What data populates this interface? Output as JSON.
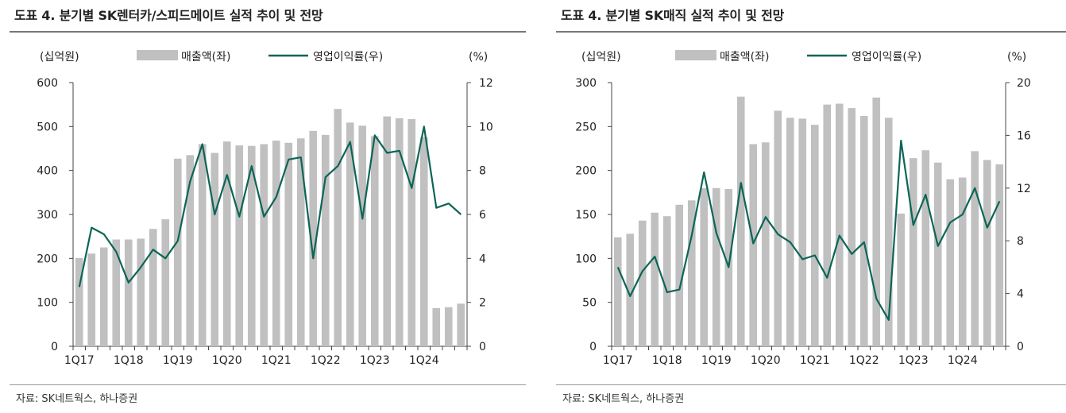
{
  "colors": {
    "bar": "#c0c0c0",
    "line": "#0c6556",
    "axis": "#444444",
    "rule": "#777777"
  },
  "chart_data": [
    {
      "type": "bar",
      "title": "도표 4. 분기별 SK렌터카/스피드메이트 실적 추이 및 전망",
      "source": "자료: SK네트웍스, 하나증권",
      "left_unit": "(십억원)",
      "right_unit": "(%)",
      "legend_bar": "매출액(좌)",
      "legend_line": "영업이익률(우)",
      "left_ylim": [
        0,
        600
      ],
      "left_ticks": [
        "0",
        "100",
        "200",
        "300",
        "400",
        "500",
        "600"
      ],
      "right_ylim": [
        0,
        12
      ],
      "right_ticks": [
        "0",
        "2",
        "4",
        "6",
        "8",
        "10",
        "12"
      ],
      "x_ticks": [
        "1Q17",
        "1Q18",
        "1Q19",
        "1Q20",
        "1Q21",
        "1Q22",
        "1Q23",
        "1Q24"
      ],
      "quarters": [
        "1Q17",
        "2Q17",
        "3Q17",
        "4Q17",
        "1Q18",
        "2Q18",
        "3Q18",
        "4Q18",
        "1Q19",
        "2Q19",
        "3Q19",
        "4Q19",
        "1Q20",
        "2Q20",
        "3Q20",
        "4Q20",
        "1Q21",
        "2Q21",
        "3Q21",
        "4Q21",
        "1Q22",
        "2Q22",
        "3Q22",
        "4Q22",
        "1Q23",
        "2Q23",
        "3Q23",
        "4Q23",
        "1Q24",
        "2Q24",
        "3Q24",
        "4Q24"
      ],
      "series": [
        {
          "name": "매출액(좌)",
          "axis": "left",
          "kind": "bar",
          "values": [
            201,
            211,
            225,
            243,
            243,
            245,
            267,
            289,
            427,
            435,
            460,
            440,
            466,
            457,
            456,
            460,
            468,
            463,
            473,
            490,
            481,
            540,
            509,
            502,
            478,
            523,
            519,
            517,
            476,
            87,
            89,
            97
          ]
        },
        {
          "name": "영업이익률(우)",
          "axis": "right",
          "kind": "line",
          "values": [
            2.7,
            5.4,
            5.1,
            4.3,
            2.9,
            3.6,
            4.4,
            4.0,
            4.8,
            7.5,
            9.2,
            6.0,
            7.8,
            5.9,
            8.2,
            5.9,
            6.8,
            8.5,
            8.6,
            4.0,
            7.7,
            8.2,
            9.3,
            5.8,
            9.6,
            8.8,
            8.9,
            7.2,
            10.0,
            6.3,
            6.5,
            6.0
          ]
        }
      ]
    },
    {
      "type": "bar",
      "title": "도표 4. 분기별 SK매직 실적 추이 및 전망",
      "source": "자료: SK네트웍스, 하나증권",
      "left_unit": "(십억원)",
      "right_unit": "(%)",
      "legend_bar": "매출액(좌)",
      "legend_line": "영업이익률(우)",
      "left_ylim": [
        0,
        300
      ],
      "left_ticks": [
        "0",
        "50",
        "100",
        "150",
        "200",
        "250",
        "300"
      ],
      "right_ylim": [
        0,
        20
      ],
      "right_ticks": [
        "0",
        "4",
        "8",
        "12",
        "16",
        "20"
      ],
      "x_ticks": [
        "1Q17",
        "1Q18",
        "1Q19",
        "1Q20",
        "1Q21",
        "1Q22",
        "1Q23",
        "1Q24"
      ],
      "quarters": [
        "1Q17",
        "2Q17",
        "3Q17",
        "4Q17",
        "1Q18",
        "2Q18",
        "3Q18",
        "4Q18",
        "1Q19",
        "2Q19",
        "3Q19",
        "4Q19",
        "1Q20",
        "2Q20",
        "3Q20",
        "4Q20",
        "1Q21",
        "2Q21",
        "3Q21",
        "4Q21",
        "1Q22",
        "2Q22",
        "3Q22",
        "4Q22",
        "1Q23",
        "2Q23",
        "3Q23",
        "4Q23",
        "1Q24",
        "2Q24",
        "3Q24",
        "4Q24"
      ],
      "series": [
        {
          "name": "매출액(좌)",
          "axis": "left",
          "kind": "bar",
          "values": [
            124,
            128,
            143,
            152,
            148,
            161,
            166,
            180,
            180,
            179,
            284,
            230,
            232,
            268,
            260,
            259,
            252,
            275,
            276,
            271,
            262,
            283,
            260,
            151,
            214,
            223,
            209,
            190,
            192,
            222,
            212,
            207
          ]
        },
        {
          "name": "영업이익률(우)",
          "axis": "right",
          "kind": "line",
          "values": [
            6.0,
            3.8,
            5.7,
            6.8,
            4.1,
            4.3,
            8.4,
            13.2,
            8.6,
            6.0,
            12.4,
            7.8,
            9.8,
            8.5,
            7.9,
            6.6,
            6.9,
            5.2,
            8.4,
            7.0,
            7.9,
            3.6,
            2.0,
            15.6,
            9.2,
            11.5,
            7.6,
            9.4,
            10.0,
            12.0,
            9.0,
            11.0
          ]
        }
      ]
    }
  ]
}
